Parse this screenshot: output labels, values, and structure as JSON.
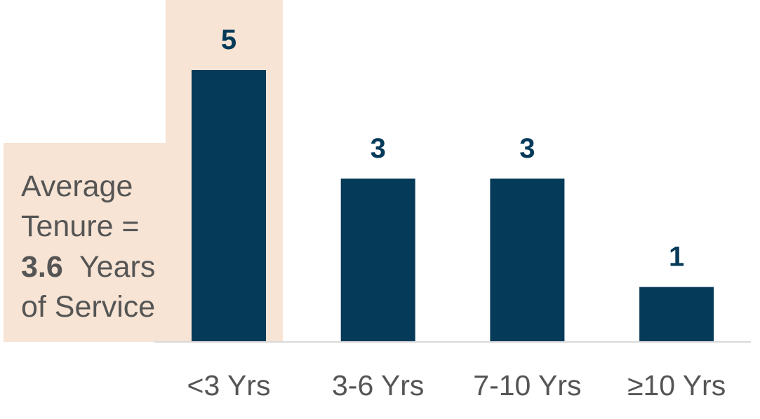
{
  "chart_data": {
    "type": "bar",
    "categories": [
      "<3 Yrs",
      "3-6 Yrs",
      "7-10 Yrs",
      "≥10 Yrs"
    ],
    "values": [
      5,
      3,
      3,
      1
    ],
    "color": "#063a59",
    "annotation": {
      "line1": "Average",
      "line2": "Tenure =",
      "value": 3.6,
      "line3": "Years",
      "line4": "of Service"
    }
  }
}
